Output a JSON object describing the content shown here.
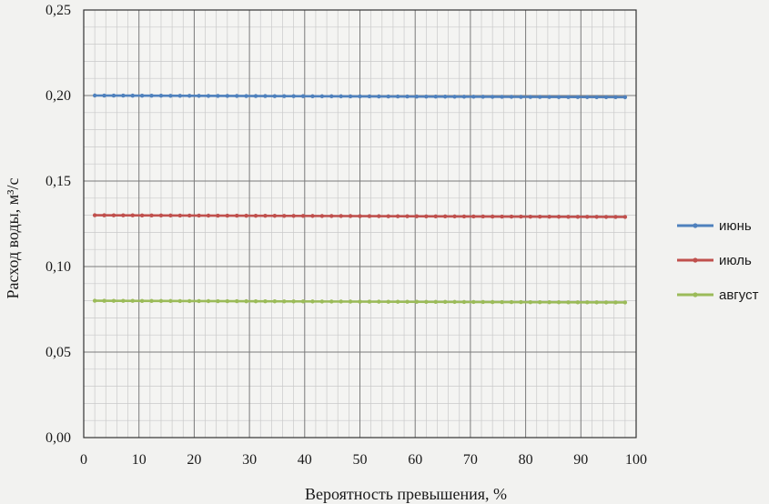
{
  "chart_data": {
    "type": "line",
    "title": "",
    "xlabel": "Вероятность превышения, %",
    "ylabel": "Расход воды, м³/с",
    "xlim": [
      0,
      100
    ],
    "ylim": [
      0,
      0.25
    ],
    "x_ticks": [
      "0",
      "10",
      "20",
      "30",
      "40",
      "50",
      "60",
      "70",
      "80",
      "90",
      "100"
    ],
    "y_ticks": [
      "0,00",
      "0,05",
      "0,10",
      "0,15",
      "0,20",
      "0,25"
    ],
    "grid": true,
    "legend_position": "right",
    "series": [
      {
        "name": "июнь",
        "color": "#4f81bd",
        "x_start": 2,
        "x_end": 98,
        "y_start": 0.2,
        "y_end": 0.199
      },
      {
        "name": "июль",
        "color": "#c0504d",
        "x_start": 2,
        "x_end": 98,
        "y_start": 0.13,
        "y_end": 0.129
      },
      {
        "name": "август",
        "color": "#9bbb59",
        "x_start": 2,
        "x_end": 98,
        "y_start": 0.08,
        "y_end": 0.079
      }
    ]
  }
}
